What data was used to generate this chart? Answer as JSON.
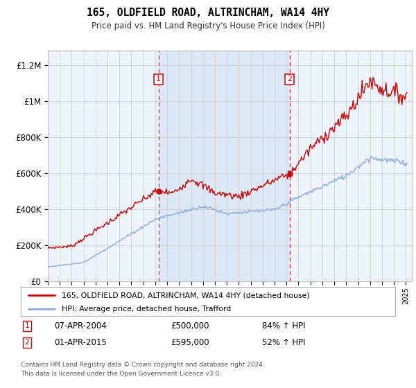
{
  "title": "165, OLDFIELD ROAD, ALTRINCHAM, WA14 4HY",
  "subtitle": "Price paid vs. HM Land Registry's House Price Index (HPI)",
  "legend_line1": "165, OLDFIELD ROAD, ALTRINCHAM, WA14 4HY (detached house)",
  "legend_line2": "HPI: Average price, detached house, Trafford",
  "footer": "Contains HM Land Registry data © Crown copyright and database right 2024.\nThis data is licensed under the Open Government Licence v3.0.",
  "sale1_date": "07-APR-2004",
  "sale1_price": 500000,
  "sale1_label": "84% ↑ HPI",
  "sale2_date": "01-APR-2015",
  "sale2_price": 595000,
  "sale2_label": "52% ↑ HPI",
  "sale1_x": 2004.27,
  "sale2_x": 2015.25,
  "ylim_min": 0,
  "ylim_max": 1280000,
  "xlim_min": 1995,
  "xlim_max": 2025.5,
  "background_color": "#ffffff",
  "plot_bg_color": "#eef2fb",
  "grid_color": "#cccccc",
  "red_color": "#cc0000",
  "blue_color": "#88aadd",
  "shade_color": "#dce8f5",
  "dashed_color": "#cc4444",
  "marker_box_color": "#cc0000"
}
